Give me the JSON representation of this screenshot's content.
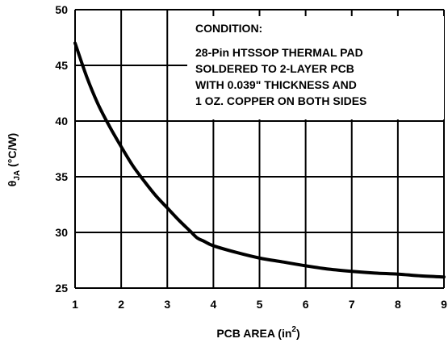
{
  "chart_data": {
    "type": "line",
    "xlabel": {
      "main": "PCB AREA (in",
      "sup": "2",
      "tail": ")"
    },
    "ylabel": {
      "theta": "θ",
      "sub": "JA",
      "tail": " (°C/W)"
    },
    "xlim": [
      1,
      9
    ],
    "ylim": [
      25,
      50
    ],
    "xticks": [
      1,
      2,
      3,
      4,
      5,
      6,
      7,
      8,
      9
    ],
    "yticks": [
      25,
      30,
      35,
      40,
      45,
      50
    ],
    "grid": true,
    "series": [
      {
        "x": [
          1.0,
          1.25,
          1.5,
          1.75,
          2.0,
          2.25,
          2.5,
          2.75,
          3.0,
          3.25,
          3.5,
          3.65,
          3.8,
          4.0,
          4.5,
          5.0,
          5.5,
          6.0,
          6.5,
          7.0,
          7.5,
          8.0,
          8.5,
          9.0
        ],
        "y": [
          47.0,
          44.0,
          41.5,
          39.5,
          37.7,
          36.0,
          34.6,
          33.3,
          32.2,
          31.1,
          30.1,
          29.5,
          29.2,
          28.8,
          28.2,
          27.7,
          27.35,
          27.0,
          26.7,
          26.5,
          26.35,
          26.25,
          26.1,
          26.0
        ],
        "color": "#000000"
      }
    ],
    "annotation": {
      "heading": "CONDITION:",
      "lines": [
        "28-Pin HTSSOP THERMAL PAD",
        "SOLDERED TO 2-LAYER PCB",
        "WITH 0.039\" THICKNESS AND",
        "1 OZ. COPPER ON BOTH SIDES"
      ]
    }
  }
}
